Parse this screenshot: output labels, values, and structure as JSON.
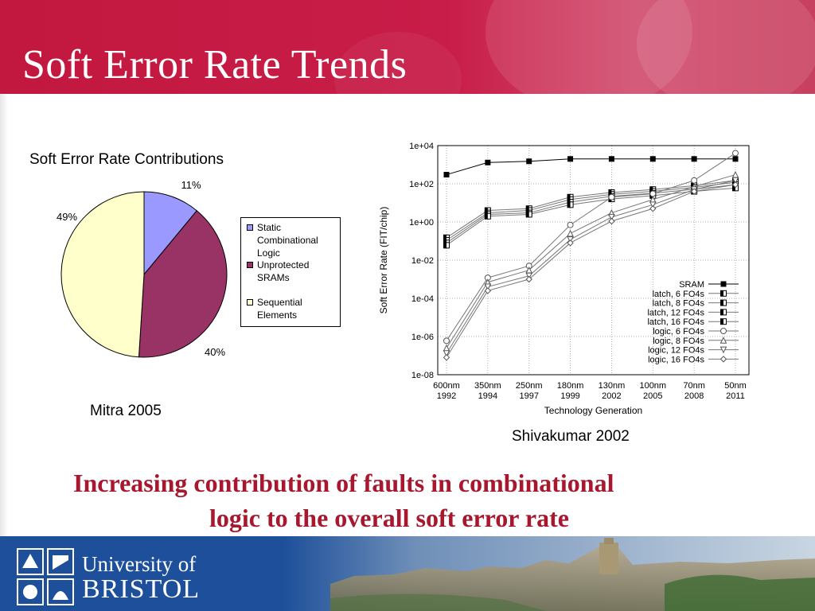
{
  "slide": {
    "title": "Soft Error Rate Trends",
    "conclusion_line1": "Increasing contribution of faults in combinational",
    "conclusion_line2": "logic to the overall soft error rate"
  },
  "brand": {
    "header_color": "#c81d48",
    "footer_color": "#1d4f9a",
    "conclusion_color": "#a8172e",
    "logo_line1": "University of",
    "logo_line2": "BRISTOL"
  },
  "chart_data": [
    {
      "type": "pie",
      "title": "Soft Error Rate Contributions",
      "source": "Mitra 2005",
      "slices": [
        {
          "label": "Static Combinational Logic",
          "value": 11,
          "color": "#9999ff",
          "label_text": "11%"
        },
        {
          "label": "Unprotected SRAMs",
          "value": 40,
          "color": "#993366",
          "label_text": "40%"
        },
        {
          "label": "Sequential Elements",
          "value": 49,
          "color": "#ffffcc",
          "label_text": "49%"
        }
      ],
      "legend_lines": [
        [
          "Static",
          "Combinational",
          "Logic"
        ],
        [
          "Unprotected",
          "SRAMs"
        ],
        [
          "Sequential",
          "Elements"
        ]
      ],
      "legend_position": "right"
    },
    {
      "type": "line",
      "source": "Shivakumar 2002",
      "xlabel": "Technology Generation",
      "ylabel": "Soft Error Rate (FIT/chip)",
      "y_scale": "log",
      "ylim": [
        1e-08,
        10000
      ],
      "y_ticks": [
        "1e-08",
        "1e-06",
        "1e-04",
        "1e-02",
        "1e+00",
        "1e+02",
        "1e+04"
      ],
      "categories": [
        "600nm",
        "350nm",
        "250nm",
        "180nm",
        "130nm",
        "100nm",
        "70nm",
        "50nm"
      ],
      "category_years": [
        "1992",
        "1994",
        "1997",
        "1999",
        "2002",
        "2005",
        "2008",
        "2011"
      ],
      "grid": true,
      "legend_position": "bottom-right",
      "series": [
        {
          "name": "SRAM",
          "marker": "square-filled",
          "values": [
            300,
            1300,
            1500,
            2000,
            2000,
            2000,
            2000,
            2000
          ]
        },
        {
          "name": "latch,  6 FO4s",
          "marker": "square-half",
          "values": [
            0.15,
            4,
            5,
            20,
            35,
            50,
            80,
            150
          ]
        },
        {
          "name": "latch,  8 FO4s",
          "marker": "square-half",
          "values": [
            0.11,
            3,
            4,
            15,
            28,
            40,
            65,
            120
          ]
        },
        {
          "name": "latch, 12 FO4s",
          "marker": "square-half",
          "values": [
            0.08,
            2.5,
            3,
            11,
            22,
            32,
            52,
            90
          ]
        },
        {
          "name": "latch, 16 FO4s",
          "marker": "square-half",
          "values": [
            0.06,
            2,
            2.5,
            8,
            16,
            24,
            40,
            60
          ]
        },
        {
          "name": "logic,  6 FO4s",
          "marker": "circle",
          "values": [
            6e-07,
            0.0012,
            0.005,
            0.7,
            20,
            30,
            150,
            4000
          ]
        },
        {
          "name": "logic,  8 FO4s",
          "marker": "triangle",
          "values": [
            2.5e-07,
            0.0007,
            0.003,
            0.25,
            3,
            15,
            70,
            300
          ]
        },
        {
          "name": "logic, 12 FO4s",
          "marker": "triangle-down",
          "values": [
            1.3e-07,
            0.0004,
            0.0015,
            0.12,
            1.8,
            8,
            50,
            150
          ]
        },
        {
          "name": "logic, 16 FO4s",
          "marker": "diamond",
          "values": [
            8e-08,
            0.00025,
            0.001,
            0.08,
            1.1,
            5,
            40,
            90
          ]
        }
      ]
    }
  ]
}
